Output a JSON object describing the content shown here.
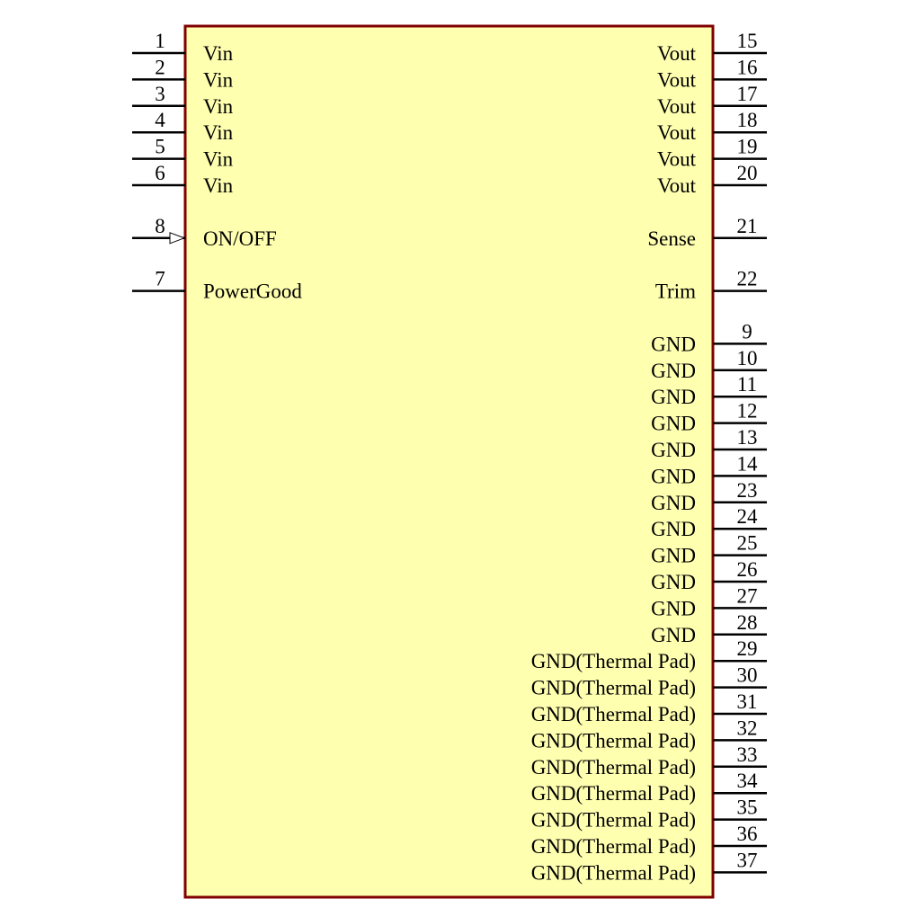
{
  "component": {
    "body_fill": "#ffffb0",
    "body_stroke": "#800000",
    "left_pins": [
      {
        "number": "1",
        "name": "Vin",
        "row": 0,
        "type": "passive"
      },
      {
        "number": "2",
        "name": "Vin",
        "row": 1,
        "type": "passive"
      },
      {
        "number": "3",
        "name": "Vin",
        "row": 2,
        "type": "passive"
      },
      {
        "number": "4",
        "name": "Vin",
        "row": 3,
        "type": "passive"
      },
      {
        "number": "5",
        "name": "Vin",
        "row": 4,
        "type": "passive"
      },
      {
        "number": "6",
        "name": "Vin",
        "row": 5,
        "type": "passive"
      },
      {
        "number": "8",
        "name": "ON/OFF",
        "row": 7,
        "type": "input"
      },
      {
        "number": "7",
        "name": "PowerGood",
        "row": 9,
        "type": "passive"
      }
    ],
    "right_pins": [
      {
        "number": "15",
        "name": "Vout",
        "row": 0
      },
      {
        "number": "16",
        "name": "Vout",
        "row": 1
      },
      {
        "number": "17",
        "name": "Vout",
        "row": 2
      },
      {
        "number": "18",
        "name": "Vout",
        "row": 3
      },
      {
        "number": "19",
        "name": "Vout",
        "row": 4
      },
      {
        "number": "20",
        "name": "Vout",
        "row": 5
      },
      {
        "number": "21",
        "name": "Sense",
        "row": 7
      },
      {
        "number": "22",
        "name": "Trim",
        "row": 9
      },
      {
        "number": "9",
        "name": "GND",
        "row": 11
      },
      {
        "number": "10",
        "name": "GND",
        "row": 12
      },
      {
        "number": "11",
        "name": "GND",
        "row": 13
      },
      {
        "number": "12",
        "name": "GND",
        "row": 14
      },
      {
        "number": "13",
        "name": "GND",
        "row": 15
      },
      {
        "number": "14",
        "name": "GND",
        "row": 16
      },
      {
        "number": "23",
        "name": "GND",
        "row": 17
      },
      {
        "number": "24",
        "name": "GND",
        "row": 18
      },
      {
        "number": "25",
        "name": "GND",
        "row": 19
      },
      {
        "number": "26",
        "name": "GND",
        "row": 20
      },
      {
        "number": "27",
        "name": "GND",
        "row": 21
      },
      {
        "number": "28",
        "name": "GND",
        "row": 22
      },
      {
        "number": "29",
        "name": "GND(Thermal Pad)",
        "row": 23
      },
      {
        "number": "30",
        "name": "GND(Thermal Pad)",
        "row": 24
      },
      {
        "number": "31",
        "name": "GND(Thermal Pad)",
        "row": 25
      },
      {
        "number": "32",
        "name": "GND(Thermal Pad)",
        "row": 26
      },
      {
        "number": "33",
        "name": "GND(Thermal Pad)",
        "row": 27
      },
      {
        "number": "34",
        "name": "GND(Thermal Pad)",
        "row": 28
      },
      {
        "number": "35",
        "name": "GND(Thermal Pad)",
        "row": 29
      },
      {
        "number": "36",
        "name": "GND(Thermal Pad)",
        "row": 30
      },
      {
        "number": "37",
        "name": "GND(Thermal Pad)",
        "row": 31
      }
    ]
  }
}
